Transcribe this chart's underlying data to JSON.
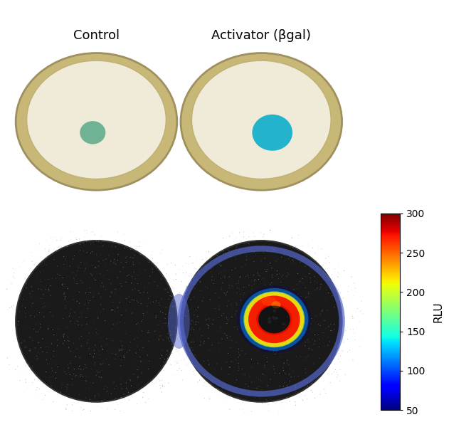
{
  "title_control": "Control",
  "title_activator": "Activator (βgal)",
  "colorbar_label": "RLU",
  "colorbar_ticks": [
    50,
    100,
    150,
    200,
    250,
    300
  ],
  "colorbar_min": 50,
  "colorbar_max": 300,
  "fig_width": 6.69,
  "fig_height": 6.0,
  "top_bg": "#f5f0e8",
  "plate_outer_color": "#c8b878",
  "plate_inner_color": "#f0ead8",
  "control_spot_color": "#5aaa88",
  "activator_spot_color": "#00aacc",
  "bottom_bg": "#111111",
  "ring_color": "#5566cc"
}
